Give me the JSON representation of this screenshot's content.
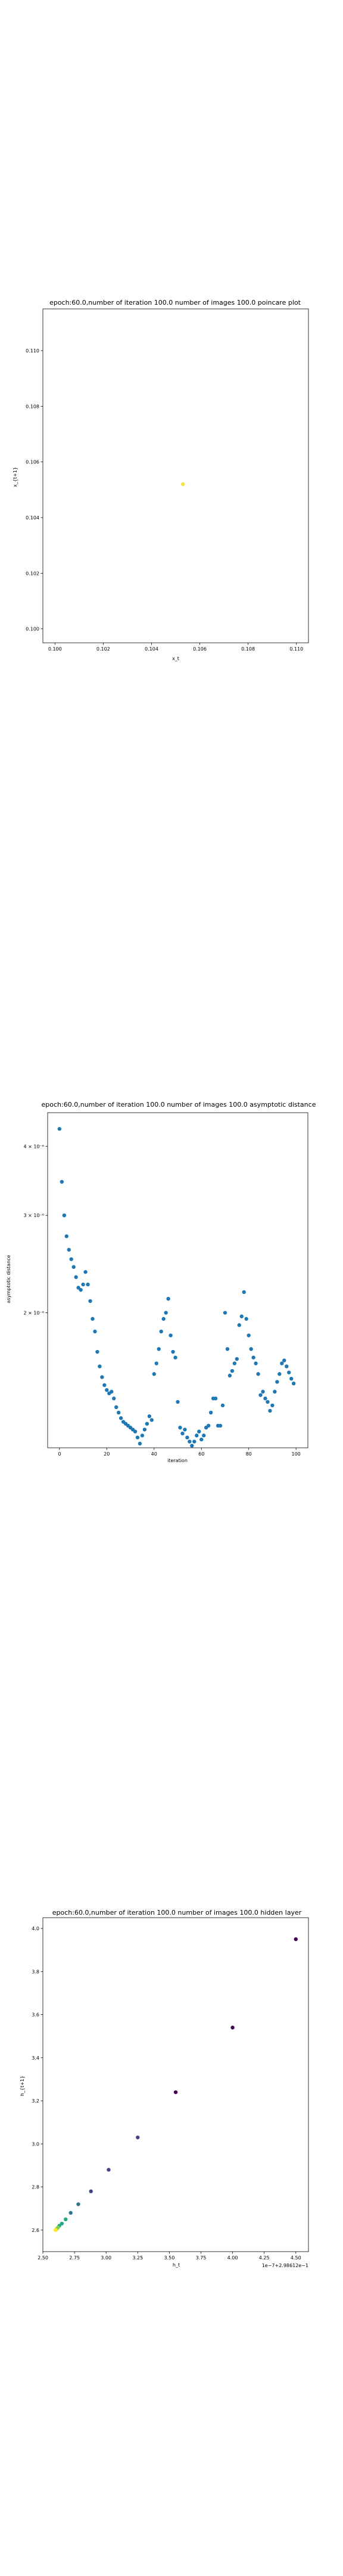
{
  "chart_data": [
    {
      "type": "scatter",
      "title": "epoch:60.0,number of iteration 100.0 number of images 100.0 poincare plot",
      "xlabel": "x_t",
      "ylabel": "x_{t+1}",
      "xlim": [
        0.0995,
        0.1105
      ],
      "ylim": [
        0.0995,
        0.1115
      ],
      "xticks": [
        "0.100",
        "0.102",
        "0.104",
        "0.106",
        "0.108",
        "0.110"
      ],
      "yticks": [
        "0.100",
        "0.102",
        "0.104",
        "0.106",
        "0.108",
        "0.110"
      ],
      "xtick_values": [
        0.1,
        0.102,
        0.104,
        0.106,
        0.108,
        0.11
      ],
      "ytick_values": [
        0.1,
        0.102,
        0.104,
        0.106,
        0.108,
        0.11
      ],
      "grid": false,
      "point_color": "#f0e442",
      "x": [
        0.1053
      ],
      "y": [
        0.1052
      ]
    },
    {
      "type": "scatter",
      "title": "epoch:60.0,number of iteration 100.0  number of images 100.0 asymptotic distance",
      "xlabel": "iteration",
      "ylabel": "asymptotic distance",
      "log_y": true,
      "xlim": [
        -5,
        105
      ],
      "ylim": [
        1.14e-06,
        4.6e-06
      ],
      "xticks": [
        "0",
        "20",
        "40",
        "60",
        "80",
        "100"
      ],
      "xtick_values": [
        0,
        20,
        40,
        60,
        80,
        100
      ],
      "yticks": [
        "4 × 10⁻⁶",
        "3 × 10⁻⁶",
        "2 × 10⁻⁶"
      ],
      "ytick_values": [
        4e-06,
        3e-06,
        2e-06
      ],
      "grid": false,
      "point_color": "#1f77b4",
      "x": [
        0,
        1,
        2,
        3,
        4,
        5,
        6,
        7,
        8,
        9,
        10,
        11,
        12,
        13,
        14,
        15,
        16,
        17,
        18,
        19,
        20,
        21,
        22,
        23,
        24,
        25,
        26,
        27,
        28,
        29,
        30,
        31,
        32,
        33,
        34,
        35,
        36,
        37,
        38,
        39,
        40,
        41,
        42,
        43,
        44,
        45,
        46,
        47,
        48,
        49,
        50,
        51,
        52,
        53,
        54,
        55,
        56,
        57,
        58,
        59,
        60,
        61,
        62,
        63,
        64,
        65,
        66,
        67,
        68,
        69,
        70,
        71,
        72,
        73,
        74,
        75,
        76,
        77,
        78,
        79,
        80,
        81,
        82,
        83,
        84,
        85,
        86,
        87,
        88,
        89,
        90,
        91,
        92,
        93,
        94,
        95,
        96,
        97,
        98,
        99
      ],
      "y": [
        4.3e-06,
        3.45e-06,
        3e-06,
        2.75e-06,
        2.6e-06,
        2.5e-06,
        2.42e-06,
        2.32e-06,
        2.22e-06,
        2.2e-06,
        2.25e-06,
        2.37e-06,
        2.25e-06,
        2.1e-06,
        1.95e-06,
        1.85e-06,
        1.7e-06,
        1.6e-06,
        1.53e-06,
        1.48e-06,
        1.45e-06,
        1.43e-06,
        1.44e-06,
        1.4e-06,
        1.35e-06,
        1.32e-06,
        1.29e-06,
        1.27e-06,
        1.26e-06,
        1.25e-06,
        1.24e-06,
        1.23e-06,
        1.22e-06,
        1.19e-06,
        1.16e-06,
        1.2e-06,
        1.23e-06,
        1.26e-06,
        1.3e-06,
        1.28e-06,
        1.55e-06,
        1.62e-06,
        1.72e-06,
        1.85e-06,
        1.95e-06,
        2e-06,
        2.12e-06,
        1.82e-06,
        1.7e-06,
        1.66e-06,
        1.38e-06,
        1.24e-06,
        1.21e-06,
        1.23e-06,
        1.19e-06,
        1.17e-06,
        1.15e-06,
        1.17e-06,
        1.2e-06,
        1.22e-06,
        1.18e-06,
        1.2e-06,
        1.24e-06,
        1.25e-06,
        1.32e-06,
        1.4e-06,
        1.4e-06,
        1.25e-06,
        1.25e-06,
        1.36e-06,
        2e-06,
        1.72e-06,
        1.54e-06,
        1.57e-06,
        1.62e-06,
        1.65e-06,
        1.9e-06,
        1.97e-06,
        2.18e-06,
        1.95e-06,
        1.82e-06,
        1.72e-06,
        1.66e-06,
        1.62e-06,
        1.55e-06,
        1.42e-06,
        1.44e-06,
        1.4e-06,
        1.38e-06,
        1.33e-06,
        1.36e-06,
        1.44e-06,
        1.5e-06,
        1.55e-06,
        1.62e-06,
        1.64e-06,
        1.6e-06,
        1.56e-06,
        1.52e-06,
        1.49e-06
      ]
    },
    {
      "type": "scatter",
      "title": "epoch:60.0,number of iteration 100.0  number of images 100.0 hidden layer",
      "xlabel": "h_t",
      "ylabel": "h_{t+1}",
      "xlim": [
        2.5,
        4.6
      ],
      "ylim": [
        2.5,
        4.05
      ],
      "xticks": [
        "2.50",
        "2.75",
        "3.00",
        "3.25",
        "3.50",
        "3.75",
        "4.00",
        "4.25",
        "4.50"
      ],
      "xtick_values": [
        2.5,
        2.75,
        3.0,
        3.25,
        3.5,
        3.75,
        4.0,
        4.25,
        4.5
      ],
      "yticks": [
        "2.6",
        "2.8",
        "3.0",
        "3.2",
        "3.4",
        "3.6",
        "3.8",
        "4.0"
      ],
      "ytick_values": [
        2.6,
        2.8,
        3.0,
        3.2,
        3.4,
        3.6,
        3.8,
        4.0
      ],
      "x_offset_label": "1e−7+2.98612e−1",
      "grid": false,
      "colors": [
        "#440154",
        "#414487",
        "#2a788e",
        "#22a884",
        "#7ad151",
        "#fde725"
      ],
      "x": [
        4.5,
        4.0,
        3.55,
        3.25,
        3.02,
        2.88,
        2.78,
        2.72,
        2.68,
        2.65,
        2.63,
        2.62,
        2.61,
        2.605,
        2.602,
        2.6
      ],
      "y": [
        3.95,
        3.54,
        3.24,
        3.03,
        2.88,
        2.78,
        2.72,
        2.68,
        2.65,
        2.63,
        2.62,
        2.612,
        2.606,
        2.603,
        2.601,
        2.6
      ]
    }
  ]
}
